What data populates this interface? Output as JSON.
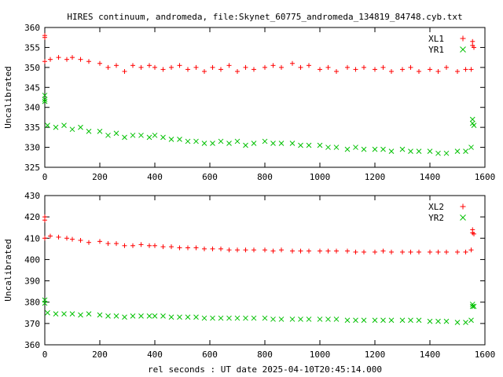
{
  "title": "HIRES continuum, andromeda, file:Skynet_60775_andromeda_134819_84748.cyb.txt",
  "xlabel": "rel seconds : UT date 2025-04-10T20:45:14.000",
  "colors": {
    "red": "#ff0000",
    "green": "#00c000",
    "axis": "#000000"
  },
  "chart_data": [
    {
      "type": "scatter",
      "ylabel": "Uncalibrated",
      "xlim": [
        0,
        1600
      ],
      "ylim": [
        325,
        360
      ],
      "x_ticks": [
        0,
        200,
        400,
        600,
        800,
        1000,
        1200,
        1400,
        1600
      ],
      "y_ticks": [
        325,
        330,
        335,
        340,
        345,
        350,
        355,
        360
      ],
      "legend_position": "top-right",
      "series": [
        {
          "name": "XL1",
          "marker": "plus",
          "color": "#ff0000",
          "points": [
            [
              0,
              358
            ],
            [
              0,
              357.5
            ],
            [
              0,
              351.5
            ],
            [
              20,
              352
            ],
            [
              50,
              352.5
            ],
            [
              80,
              352
            ],
            [
              100,
              352.5
            ],
            [
              130,
              352
            ],
            [
              160,
              351.5
            ],
            [
              200,
              351
            ],
            [
              230,
              350
            ],
            [
              260,
              350.5
            ],
            [
              290,
              349
            ],
            [
              320,
              350.5
            ],
            [
              350,
              350
            ],
            [
              380,
              350.5
            ],
            [
              400,
              350
            ],
            [
              430,
              349.5
            ],
            [
              460,
              350
            ],
            [
              490,
              350.5
            ],
            [
              520,
              349.5
            ],
            [
              550,
              350
            ],
            [
              580,
              349
            ],
            [
              610,
              350
            ],
            [
              640,
              349.5
            ],
            [
              670,
              350.5
            ],
            [
              700,
              349
            ],
            [
              730,
              350
            ],
            [
              760,
              349.5
            ],
            [
              800,
              350
            ],
            [
              830,
              350.5
            ],
            [
              860,
              350
            ],
            [
              900,
              351
            ],
            [
              930,
              350
            ],
            [
              960,
              350.5
            ],
            [
              1000,
              349.5
            ],
            [
              1030,
              350
            ],
            [
              1060,
              349
            ],
            [
              1100,
              350
            ],
            [
              1130,
              349.5
            ],
            [
              1160,
              350
            ],
            [
              1200,
              349.5
            ],
            [
              1230,
              350
            ],
            [
              1260,
              349
            ],
            [
              1300,
              349.5
            ],
            [
              1330,
              350
            ],
            [
              1360,
              349
            ],
            [
              1400,
              349.5
            ],
            [
              1430,
              349
            ],
            [
              1460,
              350
            ],
            [
              1500,
              349
            ],
            [
              1530,
              349.5
            ],
            [
              1550,
              349.5
            ],
            [
              1555,
              356.5
            ],
            [
              1555,
              355.5
            ],
            [
              1560,
              355
            ]
          ]
        },
        {
          "name": "YR1",
          "marker": "x",
          "color": "#00c000",
          "points": [
            [
              0,
              343
            ],
            [
              0,
              342
            ],
            [
              0,
              341.5
            ],
            [
              10,
              335.5
            ],
            [
              40,
              335
            ],
            [
              70,
              335.5
            ],
            [
              100,
              334.5
            ],
            [
              130,
              335
            ],
            [
              160,
              334
            ],
            [
              200,
              334
            ],
            [
              230,
              333
            ],
            [
              260,
              333.5
            ],
            [
              290,
              332.5
            ],
            [
              320,
              333
            ],
            [
              350,
              333
            ],
            [
              380,
              332.5
            ],
            [
              400,
              333
            ],
            [
              430,
              332.5
            ],
            [
              460,
              332
            ],
            [
              490,
              332
            ],
            [
              520,
              331.5
            ],
            [
              550,
              331.5
            ],
            [
              580,
              331
            ],
            [
              610,
              331
            ],
            [
              640,
              331.5
            ],
            [
              670,
              331
            ],
            [
              700,
              331.5
            ],
            [
              730,
              330.5
            ],
            [
              760,
              331
            ],
            [
              800,
              331.5
            ],
            [
              830,
              331
            ],
            [
              860,
              331
            ],
            [
              900,
              331
            ],
            [
              930,
              330.5
            ],
            [
              960,
              330.5
            ],
            [
              1000,
              330.5
            ],
            [
              1030,
              330
            ],
            [
              1060,
              330
            ],
            [
              1100,
              329.5
            ],
            [
              1130,
              330
            ],
            [
              1160,
              329.5
            ],
            [
              1200,
              329.5
            ],
            [
              1230,
              329.5
            ],
            [
              1260,
              329
            ],
            [
              1300,
              329.5
            ],
            [
              1330,
              329
            ],
            [
              1360,
              329
            ],
            [
              1400,
              329
            ],
            [
              1430,
              328.5
            ],
            [
              1460,
              328.5
            ],
            [
              1500,
              329
            ],
            [
              1530,
              329
            ],
            [
              1550,
              330
            ],
            [
              1555,
              337
            ],
            [
              1555,
              336
            ],
            [
              1560,
              335.5
            ]
          ]
        }
      ]
    },
    {
      "type": "scatter",
      "ylabel": "Uncalibrated",
      "xlim": [
        0,
        1600
      ],
      "ylim": [
        360,
        430
      ],
      "x_ticks": [
        0,
        200,
        400,
        600,
        800,
        1000,
        1200,
        1400,
        1600
      ],
      "y_ticks": [
        360,
        370,
        380,
        390,
        400,
        410,
        420,
        430
      ],
      "legend_position": "top-right",
      "series": [
        {
          "name": "XL2",
          "marker": "plus",
          "color": "#ff0000",
          "points": [
            [
              0,
              420
            ],
            [
              0,
              418.5
            ],
            [
              0,
              410
            ],
            [
              20,
              411
            ],
            [
              50,
              410.5
            ],
            [
              80,
              410
            ],
            [
              100,
              409.5
            ],
            [
              130,
              409
            ],
            [
              160,
              408
            ],
            [
              200,
              408.5
            ],
            [
              230,
              407.5
            ],
            [
              260,
              407.5
            ],
            [
              290,
              406.5
            ],
            [
              320,
              406.5
            ],
            [
              350,
              407
            ],
            [
              380,
              406.5
            ],
            [
              400,
              406.5
            ],
            [
              430,
              406
            ],
            [
              460,
              406
            ],
            [
              490,
              405.5
            ],
            [
              520,
              405.5
            ],
            [
              550,
              405.5
            ],
            [
              580,
              405
            ],
            [
              610,
              405
            ],
            [
              640,
              405
            ],
            [
              670,
              404.5
            ],
            [
              700,
              404.5
            ],
            [
              730,
              404.5
            ],
            [
              760,
              404.5
            ],
            [
              800,
              404.5
            ],
            [
              830,
              404
            ],
            [
              860,
              404.5
            ],
            [
              900,
              404
            ],
            [
              930,
              404
            ],
            [
              960,
              404
            ],
            [
              1000,
              404
            ],
            [
              1030,
              404
            ],
            [
              1060,
              404
            ],
            [
              1100,
              404
            ],
            [
              1130,
              403.5
            ],
            [
              1160,
              403.5
            ],
            [
              1200,
              403.5
            ],
            [
              1230,
              404
            ],
            [
              1260,
              403.5
            ],
            [
              1300,
              403.5
            ],
            [
              1330,
              403.5
            ],
            [
              1360,
              403.5
            ],
            [
              1400,
              403.5
            ],
            [
              1430,
              403.5
            ],
            [
              1460,
              403.5
            ],
            [
              1500,
              403.5
            ],
            [
              1530,
              403.5
            ],
            [
              1550,
              404.5
            ],
            [
              1555,
              414
            ],
            [
              1555,
              412.5
            ],
            [
              1560,
              412
            ]
          ]
        },
        {
          "name": "YR2",
          "marker": "x",
          "color": "#00c000",
          "points": [
            [
              0,
              381
            ],
            [
              0,
              379.5
            ],
            [
              10,
              375
            ],
            [
              40,
              374.5
            ],
            [
              70,
              374.5
            ],
            [
              100,
              374.5
            ],
            [
              130,
              374
            ],
            [
              160,
              374.5
            ],
            [
              200,
              374
            ],
            [
              230,
              373.5
            ],
            [
              260,
              373.5
            ],
            [
              290,
              373
            ],
            [
              320,
              373.5
            ],
            [
              350,
              373.5
            ],
            [
              380,
              373.5
            ],
            [
              400,
              373.5
            ],
            [
              430,
              373.5
            ],
            [
              460,
              373
            ],
            [
              490,
              373
            ],
            [
              520,
              373
            ],
            [
              550,
              373
            ],
            [
              580,
              372.5
            ],
            [
              610,
              372.5
            ],
            [
              640,
              372.5
            ],
            [
              670,
              372.5
            ],
            [
              700,
              372.5
            ],
            [
              730,
              372.5
            ],
            [
              760,
              372.5
            ],
            [
              800,
              372.5
            ],
            [
              830,
              372
            ],
            [
              860,
              372
            ],
            [
              900,
              372
            ],
            [
              930,
              372
            ],
            [
              960,
              372
            ],
            [
              1000,
              372
            ],
            [
              1030,
              372
            ],
            [
              1060,
              372
            ],
            [
              1100,
              371.5
            ],
            [
              1130,
              371.5
            ],
            [
              1160,
              371.5
            ],
            [
              1200,
              371.5
            ],
            [
              1230,
              371.5
            ],
            [
              1260,
              371.5
            ],
            [
              1300,
              371.5
            ],
            [
              1330,
              371.5
            ],
            [
              1360,
              371.5
            ],
            [
              1400,
              371
            ],
            [
              1430,
              371
            ],
            [
              1460,
              371
            ],
            [
              1500,
              370.5
            ],
            [
              1530,
              370.5
            ],
            [
              1550,
              371.5
            ],
            [
              1555,
              379
            ],
            [
              1555,
              378
            ],
            [
              1560,
              378
            ]
          ]
        }
      ]
    }
  ]
}
